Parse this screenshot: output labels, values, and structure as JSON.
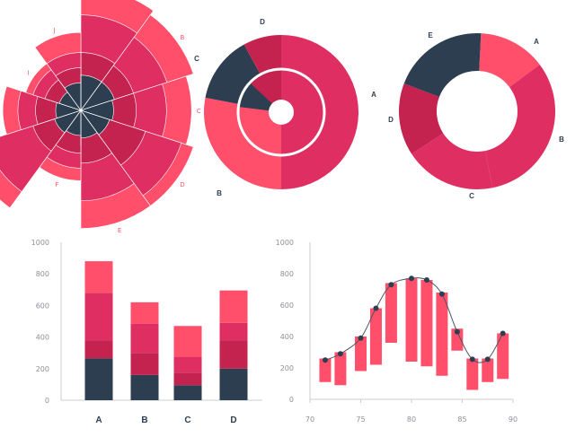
{
  "colors": {
    "navy": "#2c3e50",
    "crimson": "#c4234f",
    "rose": "#df2e62",
    "pink": "#ff4f6a",
    "axis": "#c9ccd1",
    "tick_text": "#8a8f98"
  },
  "chart_data": [
    {
      "type": "polar-area",
      "categories": [
        "A",
        "B",
        "C",
        "D",
        "E",
        "F",
        "G",
        "H",
        "I",
        "J"
      ],
      "series": [
        {
          "values": [
            0.28,
            0.28,
            0.26,
            0.24,
            0.22,
            0.2,
            0.22,
            0.2,
            0.18,
            0.22
          ]
        },
        {
          "values": [
            0.18,
            0.16,
            0.18,
            0.3,
            0.2,
            0.14,
            0.18,
            0.16,
            0.12,
            0.12
          ]
        },
        {
          "values": [
            0.3,
            0.28,
            0.24,
            0.3,
            0.3,
            0.12,
            0.4,
            0.14,
            0.1,
            0.12
          ]
        },
        {
          "values": [
            0.22,
            0.22,
            0.2,
            0.1,
            0.22,
            0.1,
            0.16,
            0.12,
            0.06,
            0.16
          ]
        }
      ],
      "highlight": {
        "category": "A",
        "color": "#ff4f6a"
      }
    },
    {
      "type": "pie",
      "slices": [
        {
          "label": "A",
          "value": 50
        },
        {
          "label": "B",
          "value": 28
        },
        {
          "label": "C",
          "value": 14
        },
        {
          "label": "D",
          "value": 8
        }
      ],
      "inner": [
        {
          "label": "A",
          "value": 50
        },
        {
          "label": "B",
          "value": 27
        },
        {
          "label": "C",
          "value": 10
        },
        {
          "label": "D",
          "value": 13
        }
      ]
    },
    {
      "type": "pie",
      "variant": "donut",
      "slices": [
        {
          "label": "A",
          "value": 14
        },
        {
          "label": "B",
          "value": 32
        },
        {
          "label": "C",
          "value": 19
        },
        {
          "label": "D",
          "value": 15
        },
        {
          "label": "E",
          "value": 20
        }
      ]
    },
    {
      "type": "bar",
      "stacked": true,
      "categories": [
        "A",
        "B",
        "C",
        "D"
      ],
      "series": [
        {
          "values": [
            265,
            160,
            95,
            200
          ]
        },
        {
          "values": [
            115,
            140,
            80,
            180
          ]
        },
        {
          "values": [
            300,
            185,
            100,
            110
          ]
        },
        {
          "values": [
            200,
            135,
            195,
            205
          ]
        }
      ],
      "ylim": [
        0,
        1000
      ],
      "yticks": [
        0,
        200,
        400,
        600,
        800,
        1000
      ]
    },
    {
      "type": "range-bar-line",
      "x": [
        71.5,
        73,
        75,
        76.5,
        78,
        80,
        81.5,
        83,
        84.5,
        86,
        87.5,
        89
      ],
      "low": [
        110,
        90,
        180,
        220,
        360,
        240,
        210,
        150,
        310,
        60,
        110,
        130
      ],
      "high": [
        260,
        300,
        400,
        580,
        740,
        770,
        760,
        680,
        450,
        260,
        260,
        420
      ],
      "line": [
        250,
        290,
        390,
        580,
        730,
        770,
        760,
        670,
        430,
        255,
        255,
        420
      ],
      "xlim": [
        70,
        90
      ],
      "ylim": [
        0,
        1000
      ],
      "xticks": [
        70,
        75,
        80,
        85,
        90
      ],
      "yticks": [
        0,
        200,
        400,
        600,
        800,
        1000
      ]
    }
  ]
}
